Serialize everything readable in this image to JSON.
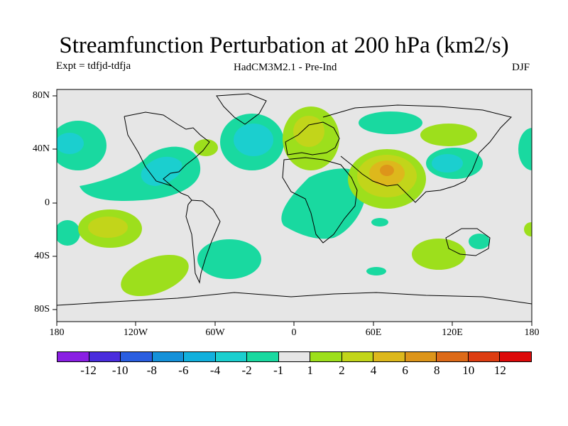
{
  "title": "Streamfunction Perturbation at 200 hPa (km2/s)",
  "subtitle_left": "Expt = tdfjd-tdfja",
  "subtitle_center": "HadCM3M2.1 - Pre-Ind",
  "subtitle_right": "DJF",
  "map": {
    "projection": "equirectangular",
    "background_color": "#e6e6e6",
    "coastline_color": "#000000",
    "lat_ticks": [
      "80N",
      "40N",
      "0",
      "40S",
      "80S"
    ],
    "lon_ticks": [
      "180",
      "120W",
      "60W",
      "0",
      "60E",
      "120E",
      "180"
    ]
  },
  "colorbar": {
    "colors": [
      "#8a1fe3",
      "#4a2ddd",
      "#2a5ee0",
      "#1591d9",
      "#12b0dd",
      "#1bcfcf",
      "#19d9a0",
      "#e6e6e6",
      "#9ddf1c",
      "#c2d51a",
      "#ddb81c",
      "#dd951a",
      "#dd6a18",
      "#dd3d12",
      "#dd0a0a"
    ],
    "labels": [
      "-12",
      "-10",
      "-8",
      "-6",
      "-4",
      "-2",
      "-1",
      "1",
      "2",
      "4",
      "6",
      "8",
      "10",
      "12"
    ]
  }
}
